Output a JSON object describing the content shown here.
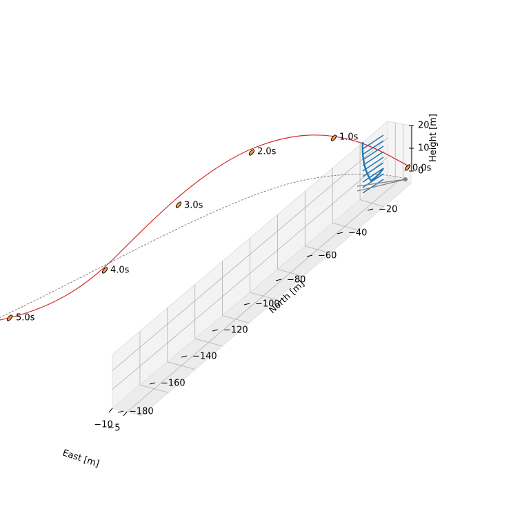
{
  "chart_data": {
    "type": "line3d",
    "title": "",
    "axes": {
      "x": {
        "label": "East [m]",
        "ticks": [
          {
            "value": -10,
            "label": "−10"
          },
          {
            "value": -5,
            "label": "−5"
          }
        ]
      },
      "y": {
        "label": "North [m]",
        "ticks": [
          {
            "value": -20,
            "label": "−20"
          },
          {
            "value": -40,
            "label": "−40"
          },
          {
            "value": -60,
            "label": "−60"
          },
          {
            "value": -80,
            "label": "−80"
          },
          {
            "value": -100,
            "label": "−100"
          },
          {
            "value": -120,
            "label": "−120"
          },
          {
            "value": -140,
            "label": "−140"
          },
          {
            "value": -160,
            "label": "−160"
          },
          {
            "value": -180,
            "label": "−180"
          }
        ]
      },
      "z": {
        "label": "Height [m]",
        "ticks": [
          {
            "value": 0,
            "label": "0"
          },
          {
            "value": 10,
            "label": "10"
          },
          {
            "value": 20,
            "label": "20"
          }
        ]
      },
      "grid": true
    },
    "time_markers": [
      "0.0s",
      "1.0s",
      "2.0s",
      "3.0s",
      "4.0s",
      "5.0s"
    ],
    "series": [],
    "colors": {
      "trajectory": "#d62728",
      "reference": "#808080",
      "wind_profile": "#1f77b4",
      "marker_fill": "#f0a040",
      "pane": "#f2f2f2",
      "grid": "#b0b0b0"
    }
  }
}
